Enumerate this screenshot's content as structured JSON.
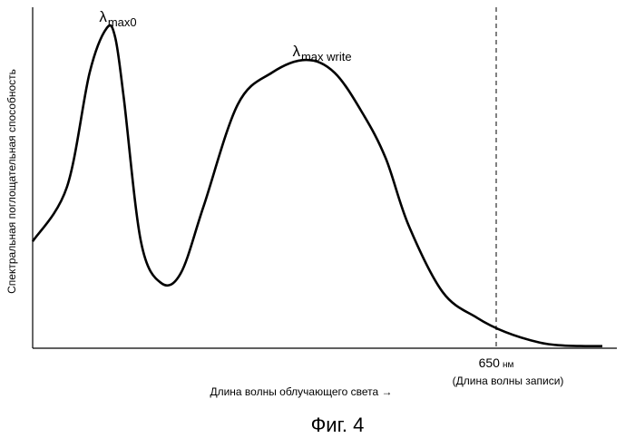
{
  "figure_caption": "Фиг. 4",
  "chart_data": {
    "type": "line",
    "ylabel": "Спектральная поглощательная способность",
    "xlabel": "Длина волны облучающего света →",
    "x_axis_marker": {
      "value_label": "650",
      "unit": "нм",
      "sublabel": "(Длина волны записи)",
      "style": "dashed"
    },
    "peaks": [
      {
        "symbol": "λ",
        "subscript": "max0"
      },
      {
        "symbol": "λ",
        "subscript": "max write"
      }
    ],
    "xlim": [
      0,
      1
    ],
    "ylim": [
      0,
      1
    ],
    "grid": false,
    "legend": "none",
    "series": [
      {
        "x": [
          0.0,
          0.06,
          0.1,
          0.13,
          0.145,
          0.16,
          0.19,
          0.225,
          0.26,
          0.3,
          0.36,
          0.42,
          0.48,
          0.53,
          0.58,
          0.62,
          0.66,
          0.72,
          0.78,
          0.83,
          0.89,
          0.93,
          0.97,
          1.0
        ],
        "y": [
          0.33,
          0.5,
          0.86,
          1.0,
          0.97,
          0.78,
          0.33,
          0.2,
          0.23,
          0.44,
          0.76,
          0.86,
          0.9,
          0.86,
          0.73,
          0.59,
          0.38,
          0.17,
          0.09,
          0.045,
          0.012,
          0.003,
          0.001,
          0.001
        ]
      }
    ]
  }
}
